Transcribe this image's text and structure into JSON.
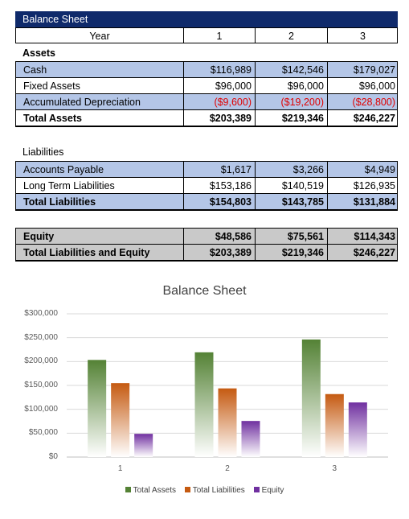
{
  "sheet": {
    "title": "Balance Sheet",
    "year_label": "Year",
    "years": [
      "1",
      "2",
      "3"
    ],
    "assets": {
      "header": "Assets",
      "rows": [
        {
          "label": "Cash",
          "values": [
            "$116,989",
            "$142,546",
            "$179,027"
          ]
        },
        {
          "label": "Fixed Assets",
          "values": [
            "$96,000",
            "$96,000",
            "$96,000"
          ]
        },
        {
          "label": "Accumulated Depreciation",
          "values": [
            "($9,600)",
            "($19,200)",
            "($28,800)"
          ]
        }
      ],
      "total": {
        "label": "Total Assets",
        "values": [
          "$203,389",
          "$219,346",
          "$246,227"
        ]
      }
    },
    "liabilities": {
      "header": "Liabilities",
      "rows": [
        {
          "label": "Accounts Payable",
          "values": [
            "$1,617",
            "$3,266",
            "$4,949"
          ]
        },
        {
          "label": "Long Term Liabilities",
          "values": [
            "$153,186",
            "$140,519",
            "$126,935"
          ]
        }
      ],
      "total": {
        "label": "Total Liabilities",
        "values": [
          "$154,803",
          "$143,785",
          "$131,884"
        ]
      }
    },
    "equity": {
      "label": "Equity",
      "values": [
        "$48,586",
        "$75,561",
        "$114,343"
      ]
    },
    "total_liab_equity": {
      "label": "Total Liabilities and Equity",
      "values": [
        "$203,389",
        "$219,346",
        "$246,227"
      ]
    }
  },
  "chart_data": {
    "type": "bar",
    "title": "Balance Sheet",
    "categories": [
      "1",
      "2",
      "3"
    ],
    "series": [
      {
        "name": "Total Assets",
        "values": [
          203389,
          219346,
          246227
        ],
        "color": "#548235"
      },
      {
        "name": "Total Liabilities",
        "values": [
          154803,
          143785,
          131884
        ],
        "color": "#c55a11"
      },
      {
        "name": "Equity",
        "values": [
          48586,
          75561,
          114343
        ],
        "color": "#7030a0"
      }
    ],
    "yticks": [
      "$0",
      "$50,000",
      "$100,000",
      "$150,000",
      "$200,000",
      "$250,000",
      "$300,000"
    ],
    "ylim": [
      0,
      300000
    ],
    "grid": true,
    "legend": "bottom"
  }
}
